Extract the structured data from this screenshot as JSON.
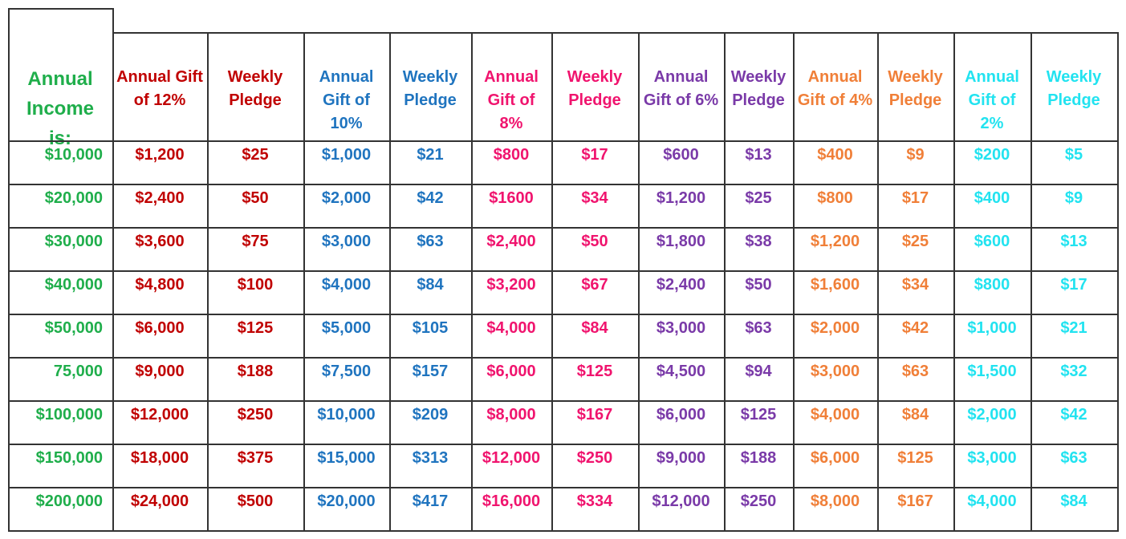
{
  "corner_label": "Annual Income is:",
  "colors": {
    "income": "#1fae4b",
    "pct12": "#c00000",
    "pct10": "#1f74bf",
    "pct8": "#f0146e",
    "pct6": "#7a3aa8",
    "pct4": "#f07f38",
    "pct2": "#22e3f0",
    "grid": "#333333"
  },
  "column_headers": [
    {
      "label": "Annual Gift of 12%",
      "color_key": "pct12"
    },
    {
      "label": "Weekly Pledge",
      "color_key": "pct12"
    },
    {
      "label": "Annual Gift of 10%",
      "color_key": "pct10"
    },
    {
      "label": "Weekly Pledge",
      "color_key": "pct10"
    },
    {
      "label": "Annual Gift of 8%",
      "color_key": "pct8"
    },
    {
      "label": "Weekly Pledge",
      "color_key": "pct8"
    },
    {
      "label": "Annual Gift of 6%",
      "color_key": "pct6"
    },
    {
      "label": "Weekly Pledge",
      "color_key": "pct6"
    },
    {
      "label": "Annual Gift of 4%",
      "color_key": "pct4"
    },
    {
      "label": "Weekly Pledge",
      "color_key": "pct4"
    },
    {
      "label": "Annual Gift of 2%",
      "color_key": "pct2"
    },
    {
      "label": "Weekly Pledge",
      "color_key": "pct2"
    }
  ],
  "rows": [
    [
      "$10,000",
      "$1,200",
      "$25",
      "$1,000",
      "$21",
      "$800",
      "$17",
      "$600",
      "$13",
      "$400",
      "$9",
      "$200",
      "$5"
    ],
    [
      "$20,000",
      "$2,400",
      "$50",
      "$2,000",
      "$42",
      "$1600",
      "$34",
      "$1,200",
      "$25",
      "$800",
      "$17",
      "$400",
      "$9"
    ],
    [
      "$30,000",
      "$3,600",
      "$75",
      "$3,000",
      "$63",
      "$2,400",
      "$50",
      "$1,800",
      "$38",
      "$1,200",
      "$25",
      "$600",
      "$13"
    ],
    [
      "$40,000",
      "$4,800",
      "$100",
      "$4,000",
      "$84",
      "$3,200",
      "$67",
      "$2,400",
      "$50",
      "$1,600",
      "$34",
      "$800",
      "$17"
    ],
    [
      "$50,000",
      "$6,000",
      "$125",
      "$5,000",
      "$105",
      "$4,000",
      "$84",
      "$3,000",
      "$63",
      "$2,000",
      "$42",
      "$1,000",
      "$21"
    ],
    [
      "75,000",
      "$9,000",
      "$188",
      "$7,500",
      "$157",
      "$6,000",
      "$125",
      "$4,500",
      "$94",
      "$3,000",
      "$63",
      "$1,500",
      "$32"
    ],
    [
      "$100,000",
      "$12,000",
      "$250",
      "$10,000",
      "$209",
      "$8,000",
      "$167",
      "$6,000",
      "$125",
      "$4,000",
      "$84",
      "$2,000",
      "$42"
    ],
    [
      "$150,000",
      "$18,000",
      "$375",
      "$15,000",
      "$313",
      "$12,000",
      "$250",
      "$9,000",
      "$188",
      "$6,000",
      "$125",
      "$3,000",
      "$63"
    ],
    [
      "$200,000",
      "$24,000",
      "$500",
      "$20,000",
      "$417",
      "$16,000",
      "$334",
      "$12,000",
      "$250",
      "$8,000",
      "$167",
      "$4,000",
      "$84"
    ]
  ]
}
